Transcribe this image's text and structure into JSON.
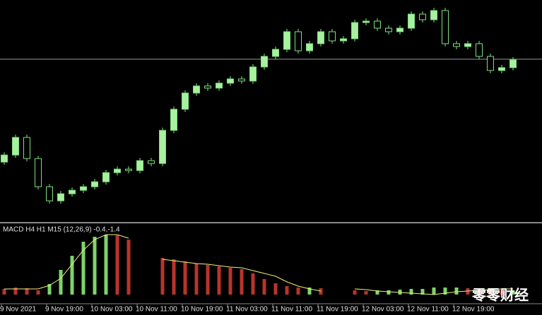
{
  "chart_data": {
    "type": "candlestick",
    "ohlc": [
      [
        85,
        99,
        81,
        95
      ],
      [
        95,
        124,
        91,
        120
      ],
      [
        120,
        124,
        86,
        90
      ],
      [
        90,
        94,
        46,
        50
      ],
      [
        50,
        54,
        26,
        30
      ],
      [
        30,
        44,
        26,
        40
      ],
      [
        40,
        49,
        36,
        45
      ],
      [
        45,
        54,
        41,
        50
      ],
      [
        50,
        61,
        46,
        57
      ],
      [
        57,
        74,
        53,
        70
      ],
      [
        70,
        79,
        66,
        75
      ],
      [
        75,
        79,
        69,
        73
      ],
      [
        73,
        91,
        69,
        87
      ],
      [
        87,
        91,
        79,
        83
      ],
      [
        83,
        134,
        79,
        130
      ],
      [
        130,
        164,
        126,
        160
      ],
      [
        160,
        187,
        156,
        183
      ],
      [
        183,
        197,
        179,
        193
      ],
      [
        193,
        197,
        186,
        190
      ],
      [
        190,
        201,
        186,
        197
      ],
      [
        197,
        207,
        193,
        203
      ],
      [
        203,
        207,
        196,
        200
      ],
      [
        200,
        224,
        196,
        220
      ],
      [
        220,
        239,
        216,
        235
      ],
      [
        235,
        249,
        231,
        245
      ],
      [
        245,
        274,
        241,
        270
      ],
      [
        270,
        274,
        239,
        243
      ],
      [
        243,
        257,
        239,
        253
      ],
      [
        253,
        274,
        249,
        270
      ],
      [
        270,
        274,
        253,
        257
      ],
      [
        257,
        264,
        253,
        260
      ],
      [
        260,
        287,
        256,
        283
      ],
      [
        283,
        289,
        279,
        285
      ],
      [
        285,
        289,
        271,
        275
      ],
      [
        275,
        279,
        266,
        270
      ],
      [
        270,
        279,
        266,
        275
      ],
      [
        275,
        299,
        271,
        295
      ],
      [
        295,
        299,
        283,
        287
      ],
      [
        287,
        304,
        283,
        300
      ],
      [
        300,
        304,
        249,
        253
      ],
      [
        253,
        257,
        245,
        249
      ],
      [
        249,
        257,
        245,
        253
      ],
      [
        253,
        257,
        231,
        235
      ],
      [
        235,
        239,
        211,
        215
      ],
      [
        215,
        223,
        211,
        219
      ],
      [
        219,
        234,
        215,
        230
      ]
    ],
    "ylim": [
      0,
      315
    ],
    "hline": 231,
    "bull_color": "#a8f0a0",
    "bear_color": "#000000",
    "wick_color": "#7fe07f",
    "xticks": [
      "9 Nov 2021",
      "9 Nov 19:00",
      "10 Nov 03:00",
      "10 Nov 11:00",
      "10 Nov 19:00",
      "11 Nov 03:00",
      "11 Nov 11:00",
      "11 Nov 19:00",
      "12 Nov 03:00",
      "12 Nov 11:00",
      "12 Nov 19:00"
    ],
    "macd": {
      "label": "MACD H4 H1 M15 (12,26,9) -0.4,-1.4",
      "ylim": [
        -12,
        100
      ],
      "histogram": [
        8,
        10,
        9,
        6,
        15,
        35,
        55,
        75,
        82,
        85,
        84,
        78,
        null,
        null,
        52,
        50,
        47,
        44,
        42,
        40,
        38,
        36,
        30,
        22,
        16,
        12,
        10,
        10,
        9,
        null,
        null,
        6,
        5,
        6,
        6,
        7,
        8,
        8,
        10,
        10,
        10,
        9,
        8,
        7,
        6,
        6
      ],
      "signal": [
        8,
        8,
        8,
        8,
        13,
        23,
        43,
        63,
        78,
        85,
        85,
        80,
        null,
        null,
        50,
        48,
        46,
        44,
        43,
        41,
        39,
        38,
        34,
        30,
        26,
        18,
        12,
        8,
        5,
        null,
        null,
        8,
        7,
        5,
        4,
        3,
        2,
        1,
        0,
        2,
        4,
        5,
        6,
        7,
        8,
        8
      ],
      "up_color": "#7ed36a",
      "down_color": "#b8342a",
      "signal_color": "#f0f080"
    },
    "watermark": "零零财经"
  }
}
